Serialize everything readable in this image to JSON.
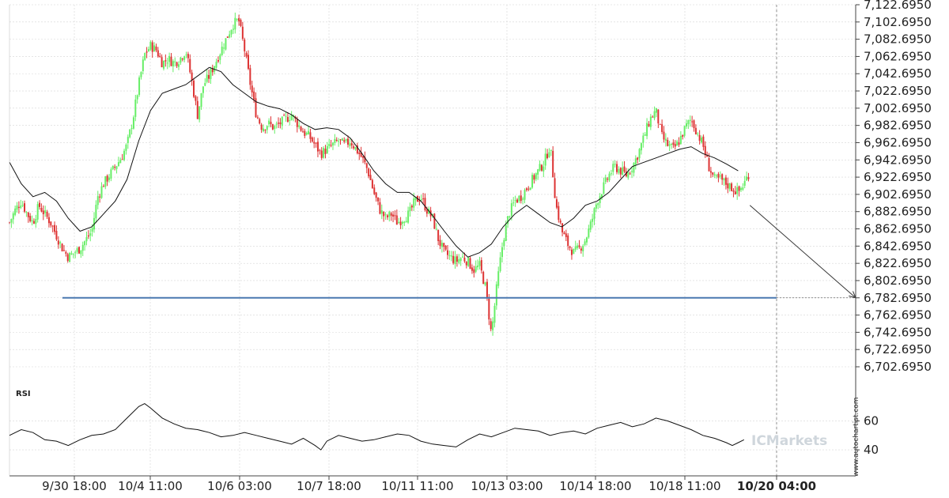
{
  "chart_data": [
    {
      "type": "candlestick",
      "ylim": [
        6702.695,
        7122.695
      ],
      "y_ticks": [
        "7,122.6950",
        "7,102.6950",
        "7,082.6950",
        "7,062.6950",
        "7,042.6950",
        "7,022.6950",
        "7,002.6950",
        "6,982.6950",
        "6,962.6950",
        "6,942.6950",
        "6,922.6950",
        "6,902.6950",
        "6,882.6950",
        "6,862.6950",
        "6,842.6950",
        "6,822.6950",
        "6,802.6950",
        "6,782.6950",
        "6,762.6950",
        "6,742.6950",
        "6,722.6950",
        "6,702.6950"
      ],
      "y_tick_values": [
        7122.695,
        7102.695,
        7082.695,
        7062.695,
        7042.695,
        7022.695,
        7002.695,
        6982.695,
        6962.695,
        6942.695,
        6922.695,
        6902.695,
        6882.695,
        6862.695,
        6842.695,
        6822.695,
        6802.695,
        6782.695,
        6762.695,
        6742.695,
        6722.695,
        6702.695
      ],
      "x_ticks": [
        "9/30 18:00",
        "10/4 11:00",
        "10/6 03:00",
        "10/7 18:00",
        "10/11 11:00",
        "10/13 03:00",
        "10/14 18:00",
        "10/18 11:00",
        "10/20 04:00"
      ],
      "up_color": "#66ee66",
      "down_color": "#dd3333",
      "close_path": [
        [
          0,
          6870
        ],
        [
          5,
          6885
        ],
        [
          10,
          6895
        ],
        [
          15,
          6880
        ],
        [
          20,
          6870
        ],
        [
          25,
          6890
        ],
        [
          30,
          6880
        ],
        [
          35,
          6870
        ],
        [
          40,
          6855
        ],
        [
          45,
          6840
        ],
        [
          50,
          6830
        ],
        [
          55,
          6835
        ],
        [
          60,
          6840
        ],
        [
          65,
          6850
        ],
        [
          70,
          6860
        ],
        [
          75,
          6900
        ],
        [
          80,
          6915
        ],
        [
          85,
          6925
        ],
        [
          90,
          6935
        ],
        [
          95,
          6945
        ],
        [
          100,
          6960
        ],
        [
          105,
          6990
        ],
        [
          110,
          7030
        ],
        [
          115,
          7065
        ],
        [
          120,
          7075
        ],
        [
          125,
          7070
        ],
        [
          130,
          7055
        ],
        [
          135,
          7060
        ],
        [
          140,
          7055
        ],
        [
          145,
          7060
        ],
        [
          150,
          7070
        ],
        [
          155,
          7035
        ],
        [
          160,
          6995
        ],
        [
          165,
          7030
        ],
        [
          170,
          7040
        ],
        [
          175,
          7055
        ],
        [
          180,
          7070
        ],
        [
          185,
          7085
        ],
        [
          190,
          7100
        ],
        [
          195,
          7105
        ],
        [
          200,
          7070
        ],
        [
          205,
          7030
        ],
        [
          210,
          6995
        ],
        [
          215,
          6980
        ],
        [
          220,
          6985
        ],
        [
          225,
          6980
        ],
        [
          230,
          6985
        ],
        [
          235,
          6990
        ],
        [
          240,
          6995
        ],
        [
          245,
          6985
        ],
        [
          250,
          6975
        ],
        [
          255,
          6970
        ],
        [
          260,
          6960
        ],
        [
          265,
          6950
        ],
        [
          270,
          6955
        ],
        [
          275,
          6960
        ],
        [
          280,
          6965
        ],
        [
          285,
          6960
        ],
        [
          290,
          6965
        ],
        [
          295,
          6955
        ],
        [
          300,
          6945
        ],
        [
          305,
          6930
        ],
        [
          310,
          6905
        ],
        [
          315,
          6885
        ],
        [
          320,
          6875
        ],
        [
          325,
          6880
        ],
        [
          330,
          6870
        ],
        [
          335,
          6875
        ],
        [
          340,
          6880
        ],
        [
          345,
          6895
        ],
        [
          350,
          6900
        ],
        [
          355,
          6885
        ],
        [
          360,
          6875
        ],
        [
          365,
          6850
        ],
        [
          370,
          6835
        ],
        [
          375,
          6830
        ],
        [
          380,
          6825
        ],
        [
          385,
          6830
        ],
        [
          390,
          6825
        ],
        [
          395,
          6815
        ],
        [
          400,
          6820
        ],
        [
          405,
          6795
        ],
        [
          410,
          6740
        ],
        [
          415,
          6800
        ],
        [
          420,
          6850
        ],
        [
          425,
          6880
        ],
        [
          430,
          6895
        ],
        [
          435,
          6900
        ],
        [
          440,
          6910
        ],
        [
          445,
          6920
        ],
        [
          450,
          6930
        ],
        [
          455,
          6940
        ],
        [
          460,
          6960
        ],
        [
          465,
          6890
        ],
        [
          470,
          6860
        ],
        [
          475,
          6845
        ],
        [
          480,
          6835
        ],
        [
          485,
          6840
        ],
        [
          490,
          6850
        ],
        [
          495,
          6870
        ],
        [
          500,
          6895
        ],
        [
          505,
          6910
        ],
        [
          510,
          6925
        ],
        [
          515,
          6935
        ],
        [
          520,
          6930
        ],
        [
          525,
          6925
        ],
        [
          530,
          6935
        ],
        [
          535,
          6950
        ],
        [
          540,
          6970
        ],
        [
          545,
          6990
        ],
        [
          550,
          7000
        ],
        [
          555,
          6970
        ],
        [
          560,
          6960
        ],
        [
          565,
          6955
        ],
        [
          570,
          6965
        ],
        [
          575,
          6980
        ],
        [
          580,
          6990
        ],
        [
          585,
          6975
        ],
        [
          590,
          6960
        ],
        [
          595,
          6935
        ],
        [
          600,
          6920
        ],
        [
          605,
          6920
        ],
        [
          610,
          6915
        ],
        [
          615,
          6910
        ],
        [
          620,
          6905
        ],
        [
          625,
          6915
        ],
        [
          630,
          6930
        ]
      ],
      "moving_average": [
        [
          0,
          6940
        ],
        [
          10,
          6915
        ],
        [
          20,
          6900
        ],
        [
          30,
          6905
        ],
        [
          40,
          6895
        ],
        [
          50,
          6875
        ],
        [
          60,
          6860
        ],
        [
          70,
          6865
        ],
        [
          80,
          6880
        ],
        [
          90,
          6895
        ],
        [
          100,
          6920
        ],
        [
          110,
          6965
        ],
        [
          120,
          7000
        ],
        [
          130,
          7020
        ],
        [
          140,
          7025
        ],
        [
          150,
          7030
        ],
        [
          160,
          7040
        ],
        [
          170,
          7050
        ],
        [
          180,
          7045
        ],
        [
          190,
          7030
        ],
        [
          200,
          7020
        ],
        [
          210,
          7010
        ],
        [
          220,
          7005
        ],
        [
          230,
          7002
        ],
        [
          240,
          6995
        ],
        [
          250,
          6985
        ],
        [
          260,
          6978
        ],
        [
          270,
          6980
        ],
        [
          280,
          6978
        ],
        [
          290,
          6968
        ],
        [
          300,
          6950
        ],
        [
          310,
          6930
        ],
        [
          320,
          6915
        ],
        [
          330,
          6905
        ],
        [
          340,
          6905
        ],
        [
          350,
          6895
        ],
        [
          360,
          6878
        ],
        [
          370,
          6860
        ],
        [
          380,
          6843
        ],
        [
          390,
          6830
        ],
        [
          400,
          6835
        ],
        [
          410,
          6845
        ],
        [
          420,
          6865
        ],
        [
          430,
          6880
        ],
        [
          440,
          6890
        ],
        [
          450,
          6880
        ],
        [
          460,
          6870
        ],
        [
          470,
          6865
        ],
        [
          480,
          6875
        ],
        [
          490,
          6890
        ],
        [
          500,
          6895
        ],
        [
          510,
          6905
        ],
        [
          520,
          6920
        ],
        [
          530,
          6935
        ],
        [
          540,
          6940
        ],
        [
          550,
          6945
        ],
        [
          560,
          6950
        ],
        [
          570,
          6955
        ],
        [
          580,
          6958
        ],
        [
          590,
          6950
        ],
        [
          600,
          6945
        ],
        [
          610,
          6938
        ],
        [
          620,
          6930
        ]
      ],
      "support_level": 6782.695,
      "projection": {
        "start": [
          630,
          6890
        ],
        "end": [
          720,
          6782.695
        ]
      },
      "current_time_marker": "10/20 04:00"
    },
    {
      "type": "line",
      "title": "RSI",
      "ylim": [
        22,
        86
      ],
      "y_ticks": [
        "60",
        "40"
      ],
      "y_tick_values": [
        60,
        40
      ],
      "series": [
        {
          "values": [
            [
              0,
              50
            ],
            [
              10,
              54
            ],
            [
              20,
              52
            ],
            [
              30,
              47
            ],
            [
              40,
              46
            ],
            [
              50,
              43
            ],
            [
              60,
              47
            ],
            [
              70,
              50
            ],
            [
              80,
              51
            ],
            [
              90,
              54
            ],
            [
              100,
              62
            ],
            [
              110,
              70
            ],
            [
              115,
              72
            ],
            [
              120,
              69
            ],
            [
              130,
              62
            ],
            [
              140,
              58
            ],
            [
              150,
              55
            ],
            [
              160,
              54
            ],
            [
              170,
              52
            ],
            [
              180,
              49
            ],
            [
              190,
              50
            ],
            [
              200,
              52
            ],
            [
              210,
              50
            ],
            [
              220,
              48
            ],
            [
              230,
              46
            ],
            [
              240,
              44
            ],
            [
              250,
              48
            ],
            [
              260,
              43
            ],
            [
              265,
              40
            ],
            [
              270,
              46
            ],
            [
              280,
              50
            ],
            [
              290,
              48
            ],
            [
              300,
              46
            ],
            [
              310,
              47
            ],
            [
              320,
              49
            ],
            [
              330,
              51
            ],
            [
              340,
              50
            ],
            [
              350,
              46
            ],
            [
              360,
              44
            ],
            [
              370,
              43
            ],
            [
              380,
              42
            ],
            [
              390,
              47
            ],
            [
              400,
              51
            ],
            [
              410,
              49
            ],
            [
              420,
              52
            ],
            [
              430,
              55
            ],
            [
              440,
              54
            ],
            [
              450,
              53
            ],
            [
              460,
              50
            ],
            [
              470,
              52
            ],
            [
              480,
              53
            ],
            [
              490,
              51
            ],
            [
              500,
              55
            ],
            [
              510,
              57
            ],
            [
              520,
              59
            ],
            [
              530,
              56
            ],
            [
              540,
              58
            ],
            [
              550,
              62
            ],
            [
              560,
              60
            ],
            [
              570,
              57
            ],
            [
              580,
              54
            ],
            [
              590,
              50
            ],
            [
              600,
              48
            ],
            [
              610,
              45
            ],
            [
              615,
              43
            ],
            [
              620,
              45
            ],
            [
              625,
              47
            ]
          ]
        }
      ]
    }
  ],
  "watermark": "ICMarkets",
  "credit": "www.autochartist.com"
}
